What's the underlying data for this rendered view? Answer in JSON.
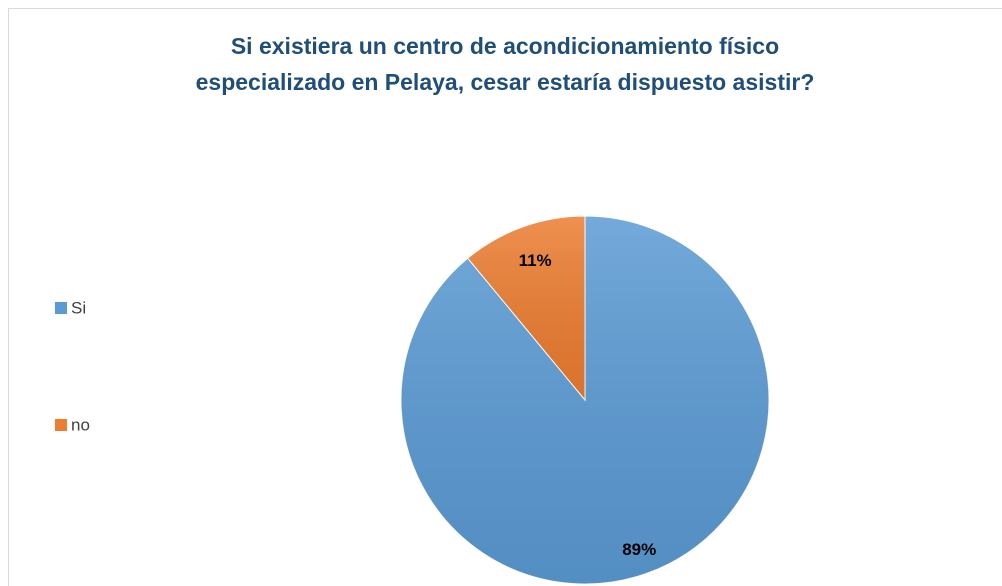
{
  "chart_data": {
    "type": "pie",
    "title": [
      "Si existiera un centro de acondicionamiento físico",
      "especializado en Pelaya, cesar estaría dispuesto asistir?"
    ],
    "categories": [
      "Si",
      "no"
    ],
    "values": [
      89,
      11
    ],
    "value_labels": [
      "89%",
      "11%"
    ],
    "colors": [
      "#5b9bd5",
      "#ed7d31"
    ],
    "legend": "left"
  }
}
